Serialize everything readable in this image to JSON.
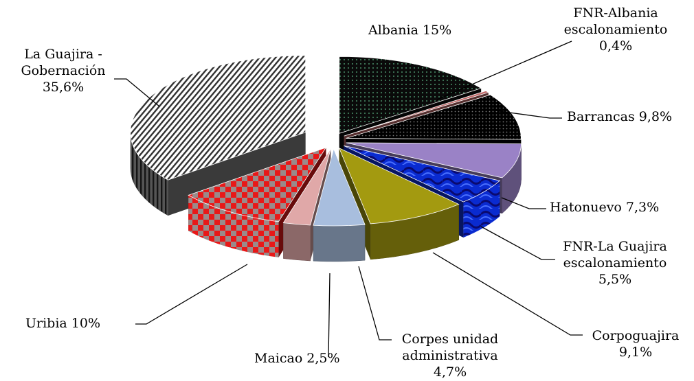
{
  "chart_data": {
    "type": "pie",
    "title": "",
    "legend": "none",
    "slices": [
      {
        "name": "Albania",
        "value": 15,
        "label": [
          "Albania 15%"
        ],
        "color": "#0a0a0a",
        "pattern": "green-dots"
      },
      {
        "name": "FNR-Albania escalonamiento",
        "value": 0.4,
        "label": [
          "FNR-Albania",
          "escalonamiento",
          "0,4%"
        ],
        "color": "#c06868",
        "pattern": "solid"
      },
      {
        "name": "Barrancas",
        "value": 9.8,
        "label": [
          "Barrancas  9,8%"
        ],
        "color": "#000000",
        "pattern": "white-dots"
      },
      {
        "name": "Hatonuevo",
        "value": 7.3,
        "label": [
          "Hatonuevo 7,3%"
        ],
        "color": "#9a82c6",
        "pattern": "solid"
      },
      {
        "name": "FNR-La Guajira escalonamiento",
        "value": 5.5,
        "label": [
          "FNR-La Guajira",
          "escalonamiento",
          "5,5%"
        ],
        "color": "#1030d8",
        "pattern": "waves"
      },
      {
        "name": "Corpoguajira",
        "value": 9.1,
        "label": [
          "Corpoguajira",
          "9,1%"
        ],
        "color": "#a39a10",
        "pattern": "solid"
      },
      {
        "name": "Corpes unidad administrativa",
        "value": 4.7,
        "label": [
          "Corpes unidad",
          "administrativa",
          "4,7%"
        ],
        "color": "#a8bede",
        "pattern": "solid"
      },
      {
        "name": "Maicao",
        "value": 2.5,
        "label": [
          "Maicao 2,5%"
        ],
        "color": "#e0a8a8",
        "pattern": "solid"
      },
      {
        "name": "Uribia",
        "value": 10,
        "label": [
          "Uribia 10%"
        ],
        "color": "#e81818",
        "pattern": "checker"
      },
      {
        "name": "La Guajira - Gobernación",
        "value": 35.6,
        "label": [
          "La Guajira -",
          "Gobernación",
          "35,6%"
        ],
        "color": "#ffffff",
        "pattern": "stripes"
      }
    ]
  }
}
